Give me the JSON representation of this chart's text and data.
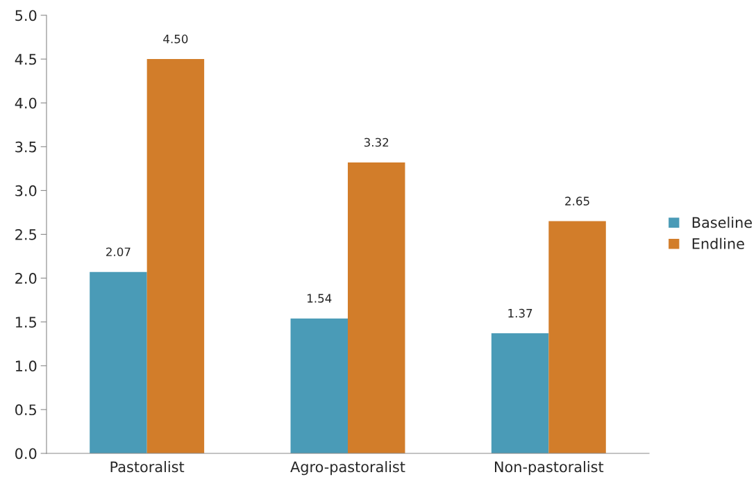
{
  "chart_data": {
    "type": "bar",
    "categories": [
      "Pastoralist",
      "Agro-pastoralist",
      "Non-pastoralist"
    ],
    "series": [
      {
        "name": "Baseline",
        "color": "#4a9bb7",
        "values": [
          2.07,
          1.54,
          1.37
        ],
        "value_labels": [
          "2.07",
          "1.54",
          "1.37"
        ]
      },
      {
        "name": "Endline",
        "color": "#d27d2a",
        "values": [
          4.5,
          3.32,
          2.65
        ],
        "value_labels": [
          "4.50",
          "3.32",
          "2.65"
        ]
      }
    ],
    "ylim": [
      0,
      5
    ],
    "yticks": [
      {
        "value": 0,
        "label": "0.0"
      },
      {
        "value": 0.5,
        "label": "0.5"
      },
      {
        "value": 1,
        "label": "1.0"
      },
      {
        "value": 1.5,
        "label": "1.5"
      },
      {
        "value": 2,
        "label": "2.0"
      },
      {
        "value": 2.5,
        "label": "2.5"
      },
      {
        "value": 3,
        "label": "3.0"
      },
      {
        "value": 3.5,
        "label": "3.5"
      },
      {
        "value": 4,
        "label": "4.0"
      },
      {
        "value": 4.5,
        "label": "4.5"
      },
      {
        "value": 5,
        "label": "5.0"
      }
    ],
    "grid": false,
    "legend": "right"
  }
}
